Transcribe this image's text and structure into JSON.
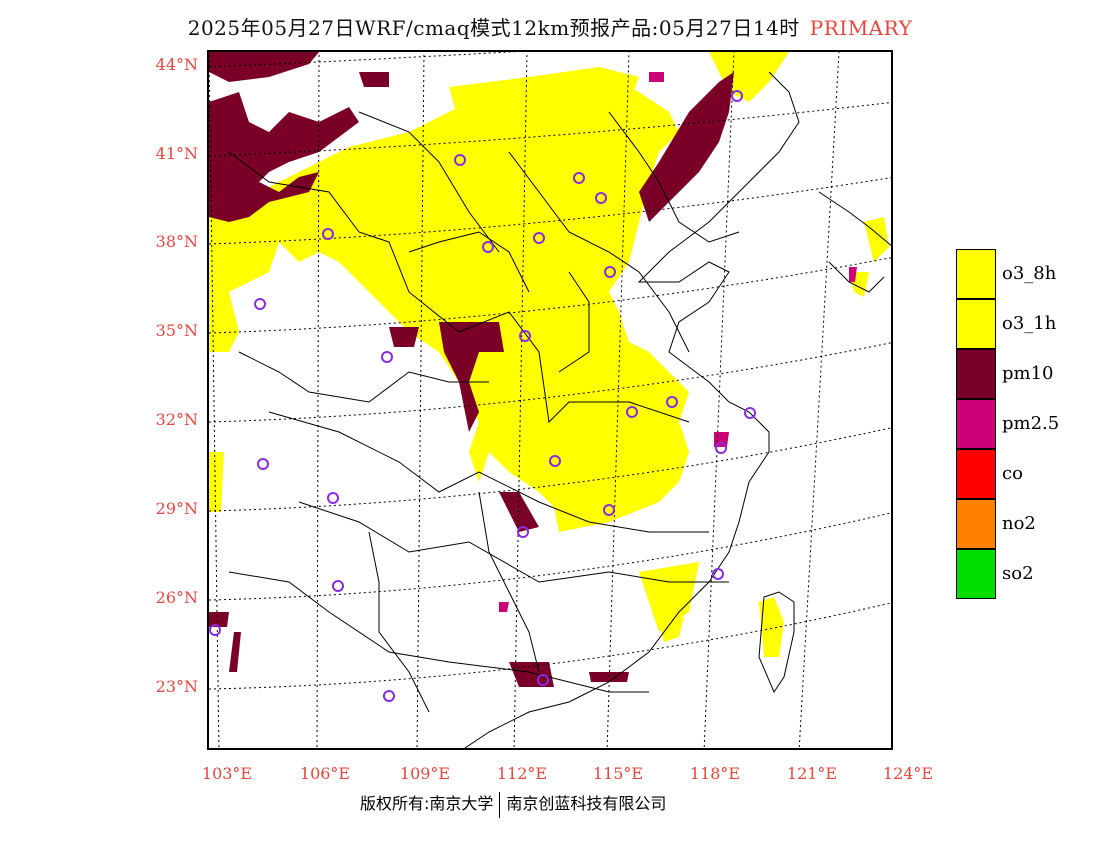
{
  "title": {
    "text": "2025年05月27日WRF/cmaq模式12km预报产品:05月27日14时",
    "tag": "PRIMARY"
  },
  "map": {
    "lat_labels": [
      "44°N",
      "41°N",
      "38°N",
      "35°N",
      "32°N",
      "29°N",
      "26°N",
      "23°N"
    ],
    "lon_labels": [
      "103°E",
      "106°E",
      "109°E",
      "112°E",
      "115°E",
      "118°E",
      "121°E",
      "124°E"
    ],
    "colors": {
      "o3": "#ffff00",
      "pm10": "#7a0028",
      "pm25": "#cc0077",
      "station_ring": "#8a2be2",
      "border": "#000000",
      "grid": "#000000"
    }
  },
  "legend": [
    {
      "label": "o3_8h",
      "color": "#ffff00"
    },
    {
      "label": "o3_1h",
      "color": "#ffff00"
    },
    {
      "label": "pm10",
      "color": "#7a0028"
    },
    {
      "label": "pm2.5",
      "color": "#cc0077"
    },
    {
      "label": "co",
      "color": "#ff0000"
    },
    {
      "label": "no2",
      "color": "#ff7f00"
    },
    {
      "label": "so2",
      "color": "#00dd00"
    }
  ],
  "footer": {
    "left": "版权所有:南京大学",
    "right": "南京创蓝科技有限公司"
  }
}
